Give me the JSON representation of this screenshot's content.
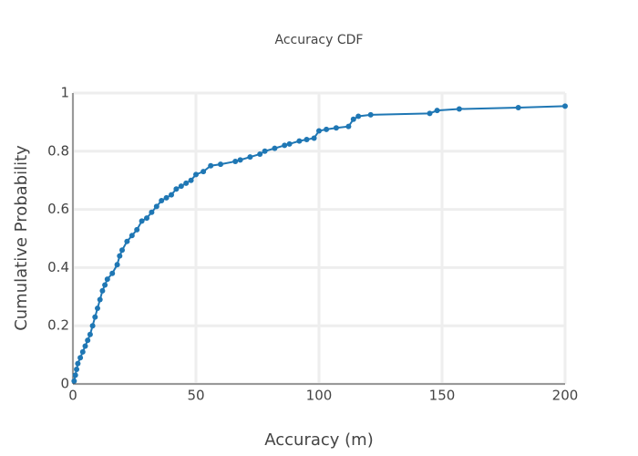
{
  "chart_data": {
    "type": "line",
    "title": "Accuracy CDF",
    "x_label": "Accuracy (m)",
    "y_label": "Cumulative Probability",
    "x": [
      0.5,
      1,
      1.5,
      2,
      3,
      4,
      5,
      6,
      7,
      8,
      9,
      10,
      11,
      12,
      13,
      14,
      16,
      18,
      19,
      20,
      22,
      24,
      26,
      28,
      30,
      32,
      34,
      36,
      38,
      40,
      42,
      44,
      46,
      48,
      50,
      53,
      56,
      60,
      66,
      68,
      72,
      76,
      78,
      82,
      86,
      88,
      92,
      95,
      98,
      100,
      103,
      107,
      112,
      114,
      116,
      121,
      145,
      148,
      157,
      181,
      200
    ],
    "values": [
      0.01,
      0.03,
      0.05,
      0.07,
      0.09,
      0.11,
      0.13,
      0.15,
      0.17,
      0.2,
      0.23,
      0.26,
      0.29,
      0.32,
      0.34,
      0.36,
      0.38,
      0.41,
      0.44,
      0.46,
      0.49,
      0.51,
      0.53,
      0.56,
      0.57,
      0.59,
      0.61,
      0.63,
      0.64,
      0.65,
      0.67,
      0.68,
      0.69,
      0.7,
      0.72,
      0.73,
      0.75,
      0.755,
      0.765,
      0.77,
      0.78,
      0.79,
      0.8,
      0.81,
      0.82,
      0.825,
      0.835,
      0.84,
      0.845,
      0.87,
      0.875,
      0.88,
      0.885,
      0.91,
      0.92,
      0.925,
      0.93,
      0.94,
      0.945,
      0.95,
      0.955
    ],
    "color": "#1f77b4",
    "xlim": [
      0,
      200
    ],
    "xticks": [
      0,
      50,
      100,
      150,
      200
    ],
    "ylim": [
      0,
      1
    ],
    "yticks": [
      0,
      0.2,
      0.4,
      0.6,
      0.8,
      1
    ],
    "grid": true
  }
}
